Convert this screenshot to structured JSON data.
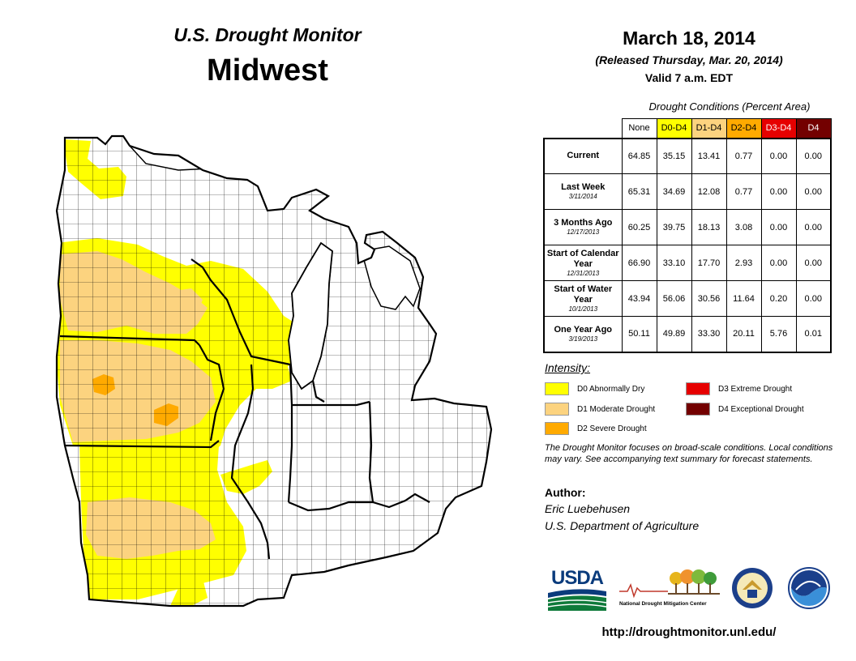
{
  "header": {
    "brand": "U.S. Drought Monitor",
    "region": "Midwest"
  },
  "date_block": {
    "date": "March 18, 2014",
    "released": "(Released Thursday, Mar. 20, 2014)",
    "valid": "Valid 7 a.m. EDT"
  },
  "table": {
    "caption": "Drought Conditions (Percent Area)",
    "columns": [
      "None",
      "D0-D4",
      "D1-D4",
      "D2-D4",
      "D3-D4",
      "D4"
    ],
    "column_colors": [
      "#ffffff",
      "#ffff00",
      "#fcd37f",
      "#ffaa00",
      "#e60000",
      "#730000"
    ],
    "column_text_colors": [
      "#000000",
      "#000000",
      "#000000",
      "#000000",
      "#ffffff",
      "#ffffff"
    ],
    "rows": [
      {
        "label": "Current",
        "sub": "",
        "values": [
          "64.85",
          "35.15",
          "13.41",
          "0.77",
          "0.00",
          "0.00"
        ]
      },
      {
        "label": "Last Week",
        "sub": "3/11/2014",
        "values": [
          "65.31",
          "34.69",
          "12.08",
          "0.77",
          "0.00",
          "0.00"
        ]
      },
      {
        "label": "3 Months Ago",
        "sub": "12/17/2013",
        "values": [
          "60.25",
          "39.75",
          "18.13",
          "3.08",
          "0.00",
          "0.00"
        ]
      },
      {
        "label": "Start of Calendar Year",
        "sub": "12/31/2013",
        "values": [
          "66.90",
          "33.10",
          "17.70",
          "2.93",
          "0.00",
          "0.00"
        ]
      },
      {
        "label": "Start of Water Year",
        "sub": "10/1/2013",
        "values": [
          "43.94",
          "56.06",
          "30.56",
          "11.64",
          "0.20",
          "0.00"
        ]
      },
      {
        "label": "One Year Ago",
        "sub": "3/19/2013",
        "values": [
          "50.11",
          "49.89",
          "33.30",
          "20.11",
          "5.76",
          "0.01"
        ]
      }
    ]
  },
  "legend": {
    "title": "Intensity:",
    "items": [
      {
        "label": "D0 Abnormally Dry",
        "color": "#ffff00"
      },
      {
        "label": "D1 Moderate Drought",
        "color": "#fcd37f"
      },
      {
        "label": "D2 Severe Drought",
        "color": "#ffaa00"
      },
      {
        "label": "D3 Extreme Drought",
        "color": "#e60000"
      },
      {
        "label": "D4 Exceptional Drought",
        "color": "#730000"
      }
    ]
  },
  "note": "The Drought Monitor focuses on broad-scale conditions. Local conditions may vary. See accompanying text summary for forecast statements.",
  "author": {
    "label": "Author:",
    "name": "Eric Luebehusen",
    "org": "U.S. Department of Agriculture"
  },
  "logos": {
    "usda": "USDA",
    "ndmc": "National Drought Mitigation Center"
  },
  "url": "http://droughtmonitor.unl.edu/",
  "map": {
    "states": [
      "Minnesota",
      "Iowa",
      "Missouri",
      "Wisconsin",
      "Michigan",
      "Illinois",
      "Indiana",
      "Ohio",
      "Kentucky"
    ],
    "colors": {
      "background": "#ffffff",
      "borders": "#000000"
    }
  }
}
